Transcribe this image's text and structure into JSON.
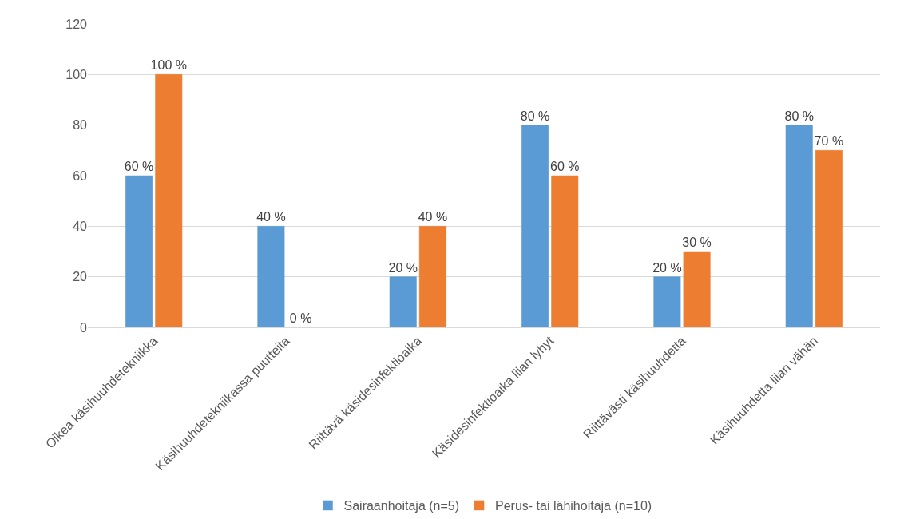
{
  "chart_data": {
    "type": "bar",
    "categories": [
      "Oikea käsihuuhdetekniikka",
      "Käsihuuhdetekniikassa puutteita",
      "Riittävä käsidesinfektioaika",
      "Käsidesinfektioaika liian lyhyt",
      "Riittävästi käsihuuhdetta",
      "Käsihuuhdetta liian vähän"
    ],
    "series": [
      {
        "name": "Sairaanhoitaja (n=5)",
        "color": "#5b9bd5",
        "values": [
          60,
          40,
          20,
          80,
          20,
          80
        ],
        "value_labels": [
          "60 %",
          "40 %",
          "20 %",
          "80 %",
          "20 %",
          "80 %"
        ]
      },
      {
        "name": "Perus- tai lähihoitaja (n=10)",
        "color": "#ed7d31",
        "values": [
          100,
          0,
          40,
          60,
          30,
          70
        ],
        "value_labels": [
          "100 %",
          "0 %",
          "40 %",
          "60 %",
          "30 %",
          "70 %"
        ]
      }
    ],
    "ylim": [
      0,
      120
    ],
    "yticks": [
      0,
      20,
      40,
      60,
      80,
      100,
      120
    ],
    "grid": "y",
    "legend": "bottom"
  }
}
